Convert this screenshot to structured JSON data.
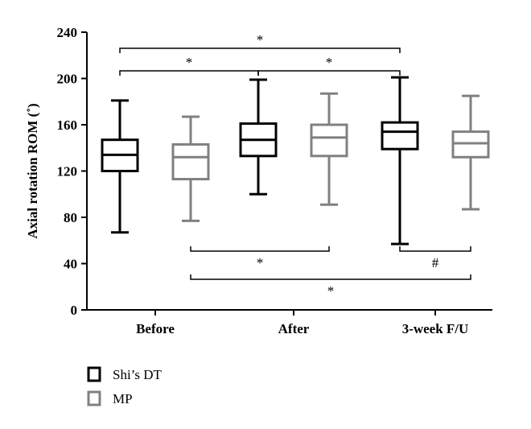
{
  "chart_data": {
    "type": "boxplot",
    "ylabel": "Axial rotation ROM (˚)",
    "ylim": [
      0,
      240
    ],
    "yticks": [
      0,
      40,
      80,
      120,
      160,
      200,
      240
    ],
    "categories": [
      "Before",
      "After",
      "3-week F/U"
    ],
    "series": [
      {
        "name": "Shi’s DT",
        "color": "#000000",
        "boxes": [
          {
            "min": 67,
            "q1": 120,
            "median": 134,
            "q3": 147,
            "max": 181
          },
          {
            "min": 100,
            "q1": 133,
            "median": 147,
            "q3": 161,
            "max": 199
          },
          {
            "min": 57,
            "q1": 139,
            "median": 154,
            "q3": 162,
            "max": 201
          }
        ]
      },
      {
        "name": "MP",
        "color": "#808080",
        "boxes": [
          {
            "min": 77,
            "q1": 113,
            "median": 132,
            "q3": 143,
            "max": 167
          },
          {
            "min": 91,
            "q1": 133,
            "median": 149,
            "q3": 160,
            "max": 187
          },
          {
            "min": 87,
            "q1": 132,
            "median": 144,
            "q3": 154,
            "max": 185
          }
        ]
      }
    ],
    "significance": [
      {
        "from": {
          "category": 0,
          "series": 0
        },
        "to": {
          "category": 2,
          "series": 0
        },
        "label": "*",
        "side": "above",
        "level": 1
      },
      {
        "from": {
          "category": 0,
          "series": 0
        },
        "to": {
          "category": 1,
          "series": 0
        },
        "label": "*",
        "side": "above",
        "level": 0
      },
      {
        "from": {
          "category": 1,
          "series": 0
        },
        "to": {
          "category": 2,
          "series": 0
        },
        "label": "*",
        "side": "above",
        "level": 0
      },
      {
        "from": {
          "category": 0,
          "series": 1
        },
        "to": {
          "category": 1,
          "series": 1
        },
        "label": "*",
        "side": "below",
        "level": 0
      },
      {
        "from": {
          "category": 2,
          "series": 0
        },
        "to": {
          "category": 2,
          "series": 1
        },
        "label": "#",
        "side": "below",
        "level": 0
      },
      {
        "from": {
          "category": 0,
          "series": 1
        },
        "to": {
          "category": 2,
          "series": 1
        },
        "label": "*",
        "side": "below",
        "level": 1
      }
    ],
    "legend": {
      "position": "bottom-left",
      "items": [
        {
          "label": "Shi’s DT",
          "color": "#000000"
        },
        {
          "label": "MP",
          "color": "#808080"
        }
      ]
    }
  }
}
